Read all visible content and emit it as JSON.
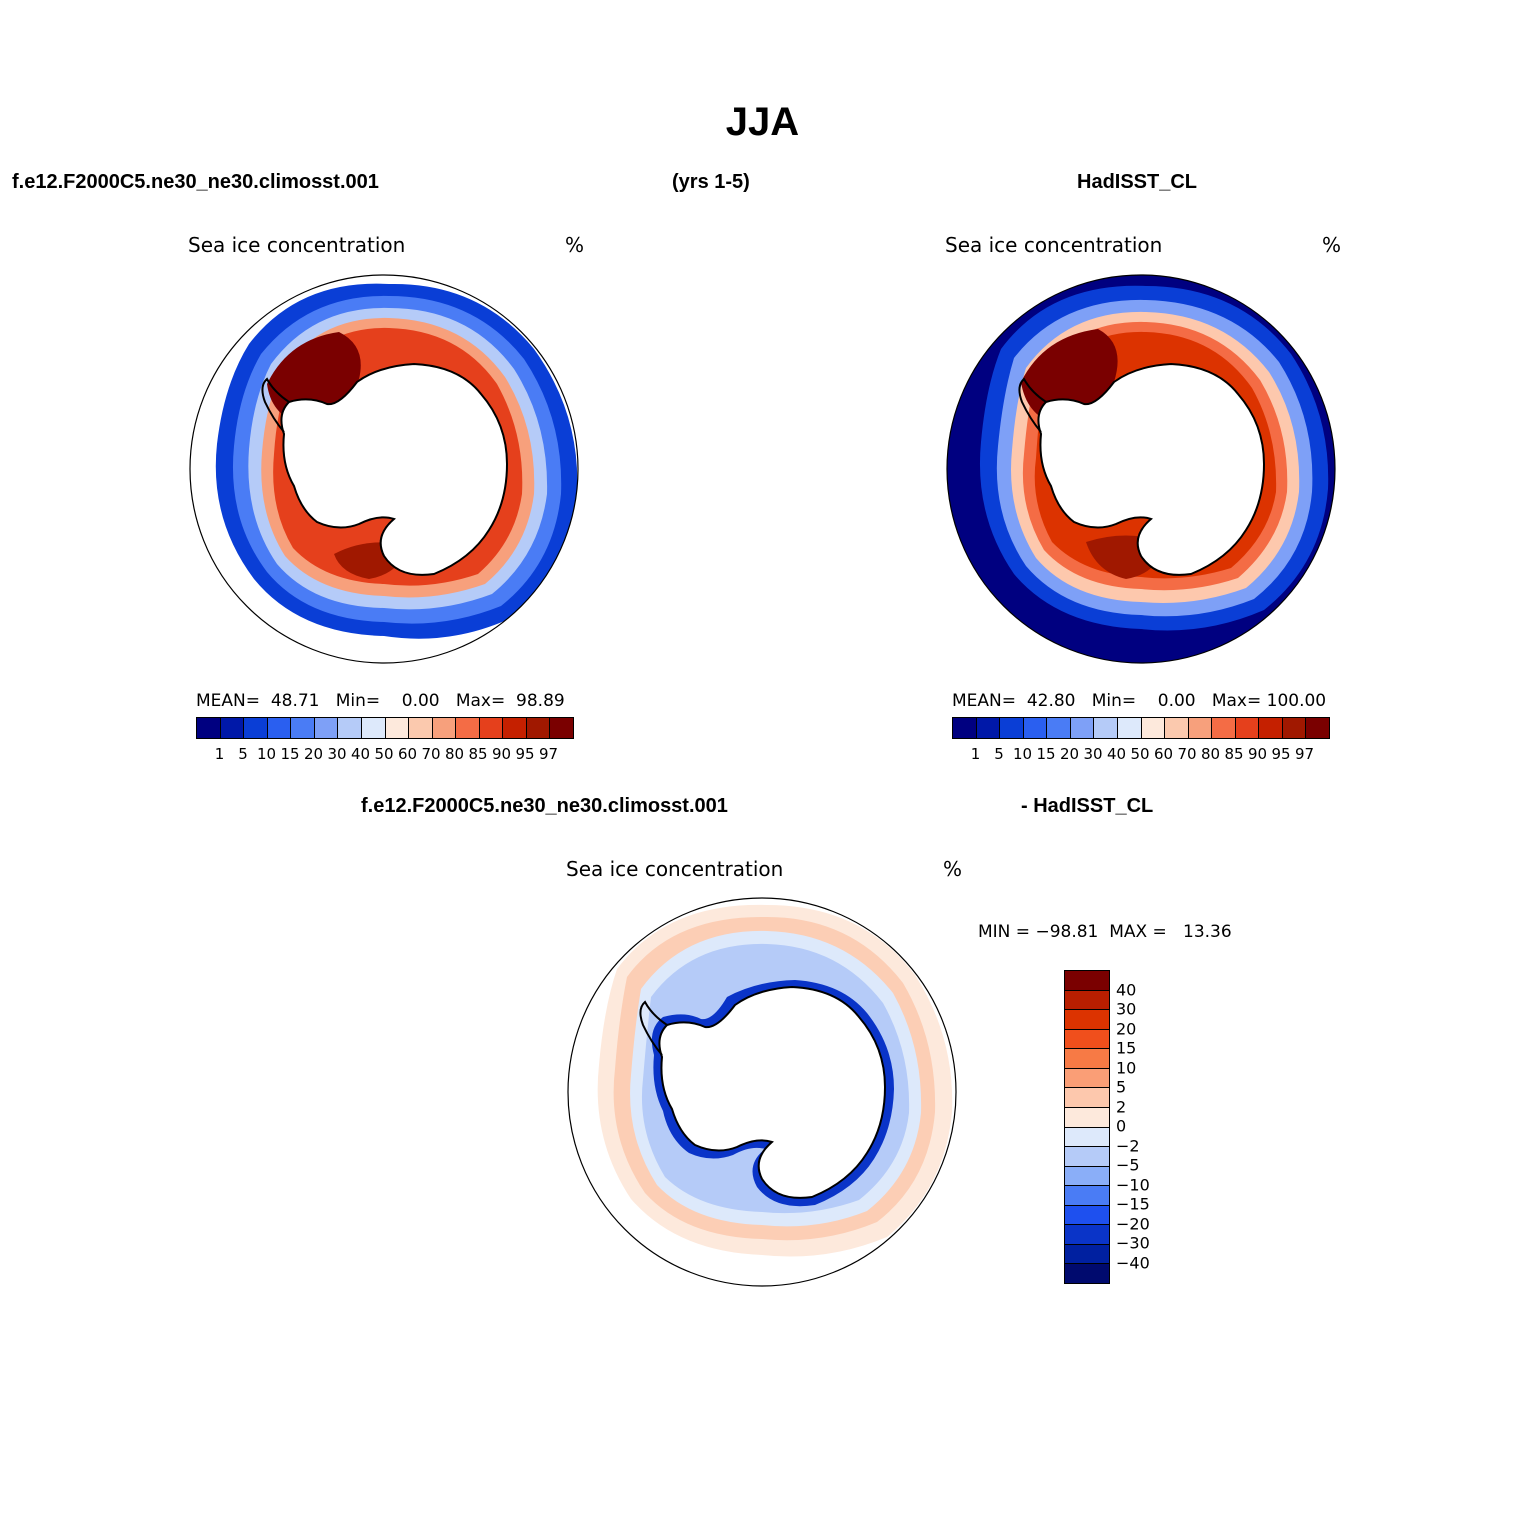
{
  "title": "JJA",
  "header": {
    "case_name": "f.e12.F2000C5.ne30_ne30.climosst.001",
    "years": "(yrs 1-5)",
    "obs_name": "HadISST_CL",
    "diff_case": "f.e12.F2000C5.ne30_ne30.climosst.001",
    "diff_obs": "- HadISST_CL"
  },
  "panels": {
    "model": {
      "title": "Sea ice concentration",
      "unit": "%",
      "stats": {
        "mean_label": "MEAN=",
        "mean": "48.71",
        "min_label": "Min=",
        "min": "0.00",
        "max_label": "Max=",
        "max": "98.89"
      }
    },
    "obs": {
      "title": "Sea ice concentration",
      "unit": "%",
      "stats": {
        "mean_label": "MEAN=",
        "mean": "42.80",
        "min_label": "Min=",
        "min": "0.00",
        "max_label": "Max=",
        "max": "100.00"
      }
    },
    "diff": {
      "title": "Sea ice concentration",
      "unit": "%",
      "stats": {
        "min_label": "MIN =",
        "min": "−98.81",
        "max_label": "MAX =",
        "max": "13.36"
      }
    }
  },
  "colorbar_levels": [
    "1",
    "5",
    "10",
    "15",
    "20",
    "30",
    "40",
    "50",
    "60",
    "70",
    "80",
    "85",
    "90",
    "95",
    "97"
  ],
  "colorbar_colors": [
    "#000080",
    "#0018a8",
    "#0a3ed6",
    "#2a5ff0",
    "#4a7cf5",
    "#7ea0f7",
    "#b5cbf8",
    "#dde9fb",
    "#fde9dc",
    "#fbc9ae",
    "#f7a07c",
    "#f46c45",
    "#e5401c",
    "#c52000",
    "#a01800",
    "#7a0000"
  ],
  "diff_levels": [
    "40",
    "30",
    "20",
    "15",
    "10",
    "5",
    "2",
    "0",
    "−2",
    "−5",
    "−10",
    "−15",
    "−20",
    "−30",
    "−40"
  ],
  "diff_colors": [
    "#7a0000",
    "#b81e00",
    "#dc3300",
    "#f04f1c",
    "#f77a45",
    "#fa9e76",
    "#fdc8ad",
    "#fde9dc",
    "#dde9fb",
    "#b5cbf8",
    "#8aaef8",
    "#4a7cf5",
    "#1e50ef",
    "#0a34c8",
    "#0020a0",
    "#000a6e"
  ],
  "map_colors": {
    "land": "#ffffff",
    "coast": "#000000",
    "open_ocean_obs": "#000080"
  }
}
